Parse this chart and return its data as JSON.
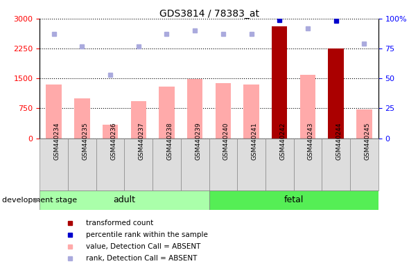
{
  "title": "GDS3814 / 78383_at",
  "samples": [
    "GSM440234",
    "GSM440235",
    "GSM440236",
    "GSM440237",
    "GSM440238",
    "GSM440239",
    "GSM440240",
    "GSM440241",
    "GSM440242",
    "GSM440243",
    "GSM440244",
    "GSM440245"
  ],
  "bar_values": [
    1350,
    1000,
    340,
    930,
    1300,
    1480,
    1390,
    1340,
    2800,
    1590,
    2250,
    720
  ],
  "bar_colors": [
    "#ffaaaa",
    "#ffaaaa",
    "#ffaaaa",
    "#ffaaaa",
    "#ffaaaa",
    "#ffaaaa",
    "#ffaaaa",
    "#ffaaaa",
    "#aa0000",
    "#ffaaaa",
    "#aa0000",
    "#ffaaaa"
  ],
  "rank_dots": [
    87,
    77,
    53,
    77,
    87,
    90,
    87,
    87,
    99,
    92,
    98,
    79
  ],
  "rank_colors": [
    "#aaaadd",
    "#aaaadd",
    "#aaaadd",
    "#aaaadd",
    "#aaaadd",
    "#aaaadd",
    "#aaaadd",
    "#aaaadd",
    "#0000cc",
    "#aaaadd",
    "#0000cc",
    "#aaaadd"
  ],
  "ylim_left": [
    0,
    3000
  ],
  "ylim_right": [
    0,
    100
  ],
  "yticks_left": [
    0,
    750,
    1500,
    2250,
    3000
  ],
  "yticks_right": [
    0,
    25,
    50,
    75,
    100
  ],
  "group_labels": [
    "adult",
    "fetal"
  ],
  "group_adult_range": [
    0,
    5
  ],
  "group_fetal_range": [
    6,
    11
  ],
  "group_color_adult": "#aaffaa",
  "group_color_fetal": "#55ee55",
  "legend_items": [
    {
      "label": "transformed count",
      "color": "#aa0000",
      "marker": "s"
    },
    {
      "label": "percentile rank within the sample",
      "color": "#0000cc",
      "marker": "s"
    },
    {
      "label": "value, Detection Call = ABSENT",
      "color": "#ffaaaa",
      "marker": "s"
    },
    {
      "label": "rank, Detection Call = ABSENT",
      "color": "#aaaadd",
      "marker": "s"
    }
  ],
  "xlabel_label": "development stage",
  "background_color": "#ffffff",
  "cell_bg": "#dddddd",
  "cell_border": "#888888"
}
